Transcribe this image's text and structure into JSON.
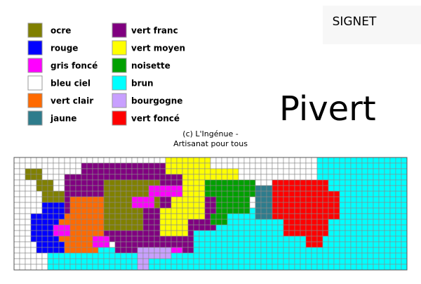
{
  "header": {
    "title": "SIGNET"
  },
  "legend": [
    {
      "label": "ocre",
      "color": "#808000"
    },
    {
      "label": "rouge",
      "color": "#0000ff"
    },
    {
      "label": "gris foncé",
      "color": "#ff00ff"
    },
    {
      "label": "bleu ciel",
      "color": "#ffffff"
    },
    {
      "label": "vert clair",
      "color": "#ff6a00"
    },
    {
      "label": "jaune",
      "color": "#2e7c8c"
    },
    {
      "label": "vert franc",
      "color": "#800080"
    },
    {
      "label": "vert moyen",
      "color": "#ffff00"
    },
    {
      "label": "noisette",
      "color": "#00a000"
    },
    {
      "label": "brun",
      "color": "#00ffff"
    },
    {
      "label": "bourgogne",
      "color": "#c8a0ff"
    },
    {
      "label": "vert foncé",
      "color": "#ff0000"
    }
  ],
  "pattern": {
    "title": "Pivert",
    "credit": [
      "(c) L'Ingénue -",
      "Artisanat pour tous"
    ]
  }
}
